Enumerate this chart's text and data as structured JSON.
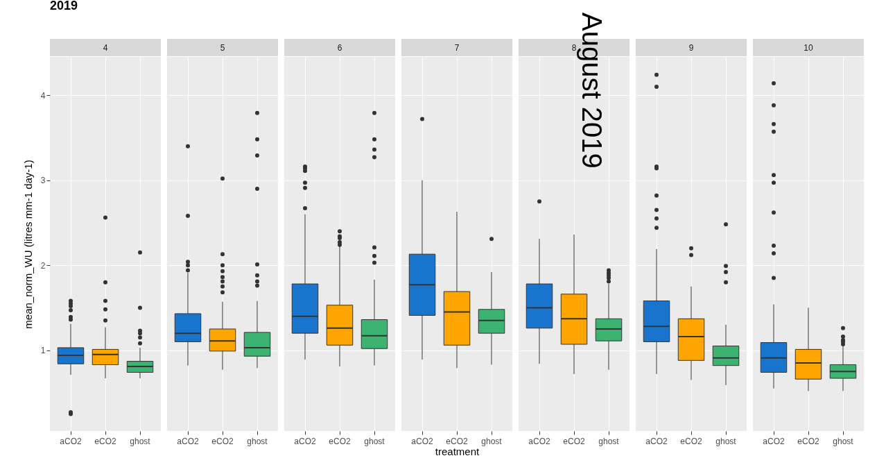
{
  "chart_data": [
    {
      "type": "box",
      "title": "2019",
      "subtitle": "4",
      "ylabel": "mean_norm_WU (litres mm-1 day-1)",
      "categories": [
        "aCO2",
        "eCO2",
        "ghost"
      ],
      "colors": [
        "#1874cd",
        "#ffa500",
        "#3cb371"
      ],
      "ylim": [
        0.05,
        4.45
      ],
      "yticks": [
        1,
        2,
        3,
        4
      ],
      "grid": true,
      "boxes": [
        {
          "low": 0.71,
          "q1": 0.84,
          "median": 0.94,
          "q3": 1.03,
          "high": 1.31,
          "outliers": [
            1.58,
            1.55,
            1.52,
            1.47,
            1.39,
            1.36,
            0.27,
            0.25
          ]
        },
        {
          "low": 0.67,
          "q1": 0.83,
          "median": 0.95,
          "q3": 1.01,
          "high": 1.27,
          "outliers": [
            2.56,
            1.8,
            1.58,
            1.48,
            1.35
          ]
        },
        {
          "low": 0.67,
          "q1": 0.74,
          "median": 0.81,
          "q3": 0.87,
          "high": 1.03,
          "outliers": [
            2.15,
            1.5,
            1.23,
            1.2,
            1.15,
            1.08
          ]
        }
      ]
    },
    {
      "type": "box",
      "subtitle": "5",
      "categories": [
        "aCO2",
        "eCO2",
        "ghost"
      ],
      "colors": [
        "#1874cd",
        "#ffa500",
        "#3cb371"
      ],
      "ylim": [
        0.05,
        4.45
      ],
      "yticks": [
        1,
        2,
        3,
        4
      ],
      "grid": true,
      "tick_labels": "x",
      "boxes": [
        {
          "low": 0.82,
          "q1": 1.1,
          "median": 1.2,
          "q3": 1.43,
          "high": 1.91,
          "outliers": [
            3.4,
            2.58,
            2.04,
            2.0,
            1.94
          ]
        },
        {
          "low": 0.77,
          "q1": 0.99,
          "median": 1.11,
          "q3": 1.25,
          "high": 1.57,
          "outliers": [
            3.02,
            2.13,
            2.0,
            1.93,
            1.86,
            1.81,
            1.75,
            1.68
          ]
        },
        {
          "low": 0.79,
          "q1": 0.93,
          "median": 1.03,
          "q3": 1.21,
          "high": 1.58,
          "outliers": [
            3.79,
            3.48,
            3.29,
            2.9,
            2.01,
            1.88,
            1.81,
            1.76
          ]
        }
      ]
    },
    {
      "type": "box",
      "subtitle": "6",
      "categories": [
        "aCO2",
        "eCO2",
        "ghost"
      ],
      "colors": [
        "#1874cd",
        "#ffa500",
        "#3cb371"
      ],
      "ylim": [
        0.05,
        4.45
      ],
      "yticks": [
        1,
        2,
        3,
        4
      ],
      "grid": true,
      "tick_labels": "x",
      "boxes": [
        {
          "low": 0.89,
          "q1": 1.2,
          "median": 1.4,
          "q3": 1.78,
          "high": 2.6,
          "outliers": [
            3.16,
            3.14,
            3.11,
            2.97,
            2.91,
            2.67
          ]
        },
        {
          "low": 0.81,
          "q1": 1.06,
          "median": 1.26,
          "q3": 1.53,
          "high": 2.23,
          "outliers": [
            2.4,
            2.34,
            2.32,
            2.27,
            2.24
          ]
        },
        {
          "low": 0.82,
          "q1": 1.02,
          "median": 1.17,
          "q3": 1.36,
          "high": 1.83,
          "outliers": [
            3.79,
            3.48,
            3.36,
            3.27,
            2.21,
            2.11,
            2.03
          ]
        }
      ]
    },
    {
      "type": "box",
      "subtitle": "7",
      "xlabel": "treatment",
      "categories": [
        "aCO2",
        "eCO2",
        "ghost"
      ],
      "colors": [
        "#1874cd",
        "#ffa500",
        "#3cb371"
      ],
      "ylim": [
        0.05,
        4.45
      ],
      "yticks": [
        1,
        2,
        3,
        4
      ],
      "grid": true,
      "tick_labels": "x",
      "boxes": [
        {
          "low": 0.89,
          "q1": 1.41,
          "median": 1.77,
          "q3": 2.13,
          "high": 3.0,
          "outliers": [
            3.72
          ]
        },
        {
          "low": 0.79,
          "q1": 1.06,
          "median": 1.45,
          "q3": 1.69,
          "high": 2.63
        },
        {
          "low": 0.83,
          "q1": 1.2,
          "median": 1.35,
          "q3": 1.48,
          "high": 1.92,
          "outliers": [
            2.31
          ]
        }
      ]
    },
    {
      "type": "box",
      "subtitle": "8",
      "annotations": [
        "August 2019"
      ],
      "categories": [
        "aCO2",
        "eCO2",
        "ghost"
      ],
      "colors": [
        "#1874cd",
        "#ffa500",
        "#3cb371"
      ],
      "ylim": [
        0.05,
        4.45
      ],
      "yticks": [
        1,
        2,
        3,
        4
      ],
      "grid": true,
      "tick_labels": "x",
      "boxes": [
        {
          "low": 0.84,
          "q1": 1.26,
          "median": 1.5,
          "q3": 1.78,
          "high": 2.31,
          "outliers": [
            2.75
          ]
        },
        {
          "low": 0.72,
          "q1": 1.07,
          "median": 1.37,
          "q3": 1.66,
          "high": 2.36
        },
        {
          "low": 0.77,
          "q1": 1.11,
          "median": 1.25,
          "q3": 1.37,
          "high": 1.78,
          "outliers": [
            1.94,
            1.91,
            1.88,
            1.85,
            1.81
          ]
        }
      ]
    },
    {
      "type": "box",
      "subtitle": "9",
      "categories": [
        "aCO2",
        "eCO2",
        "ghost"
      ],
      "colors": [
        "#1874cd",
        "#ffa500",
        "#3cb371"
      ],
      "ylim": [
        0.05,
        4.45
      ],
      "yticks": [
        1,
        2,
        3,
        4
      ],
      "grid": true,
      "tick_labels": "x",
      "boxes": [
        {
          "low": 0.72,
          "q1": 1.1,
          "median": 1.28,
          "q3": 1.58,
          "high": 2.19,
          "outliers": [
            4.24,
            4.1,
            3.16,
            3.14,
            2.82,
            2.65,
            2.55,
            2.44
          ]
        },
        {
          "low": 0.65,
          "q1": 0.88,
          "median": 1.16,
          "q3": 1.37,
          "high": 1.75,
          "outliers": [
            2.2,
            2.12
          ]
        },
        {
          "low": 0.59,
          "q1": 0.82,
          "median": 0.91,
          "q3": 1.05,
          "high": 1.3,
          "outliers": [
            2.48,
            1.99,
            1.92,
            1.8
          ]
        }
      ]
    },
    {
      "type": "box",
      "subtitle": "10",
      "categories": [
        "aCO2",
        "eCO2",
        "ghost"
      ],
      "colors": [
        "#1874cd",
        "#ffa500",
        "#3cb371"
      ],
      "ylim": [
        0.05,
        4.45
      ],
      "yticks": [
        1,
        2,
        3,
        4
      ],
      "grid": true,
      "tick_labels": "x",
      "boxes": [
        {
          "low": 0.55,
          "q1": 0.74,
          "median": 0.91,
          "q3": 1.09,
          "high": 1.54,
          "outliers": [
            4.14,
            3.88,
            3.66,
            3.57,
            3.06,
            2.97,
            2.62,
            2.23,
            2.14,
            1.85
          ]
        },
        {
          "low": 0.52,
          "q1": 0.66,
          "median": 0.85,
          "q3": 1.01,
          "high": 1.5
        },
        {
          "low": 0.52,
          "q1": 0.67,
          "median": 0.75,
          "q3": 0.83,
          "high": 1.05,
          "outliers": [
            1.26,
            1.16,
            1.12,
            1.1,
            1.07
          ]
        }
      ]
    }
  ]
}
